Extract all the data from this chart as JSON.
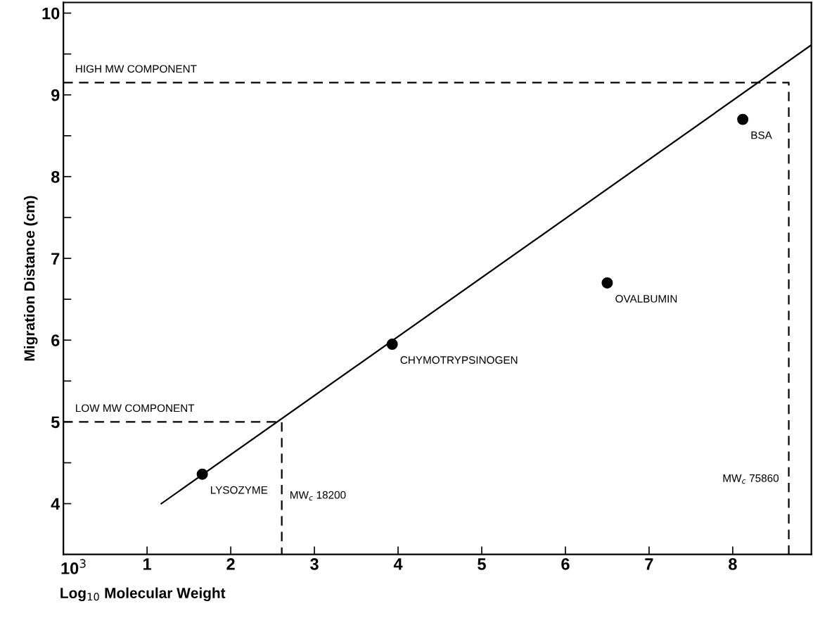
{
  "chart_data": {
    "type": "scatter",
    "xlabel": "Log$_{10}$ Molecular Weight",
    "ylabel": "Migration Distance (cm)",
    "xlim": [
      0,
      8.94
    ],
    "ylim": [
      3.38,
      10.13
    ],
    "xticks": [
      {
        "value": 0,
        "label": null
      },
      1,
      2,
      3,
      4,
      5,
      6,
      7,
      8
    ],
    "yticks": [
      4,
      {
        "value": 4.5,
        "label": null
      },
      5,
      {
        "value": 5.5,
        "label": null
      },
      6,
      {
        "value": 6.5,
        "label": null
      },
      7,
      {
        "value": 7.5,
        "label": null
      },
      8,
      {
        "value": 8.5,
        "label": null
      },
      9,
      {
        "value": 9.5,
        "label": null
      },
      10
    ],
    "grid": false,
    "legend": false,
    "series": [
      {
        "color": "#000000",
        "marker": "circle",
        "x": [
          1.66,
          3.93,
          6.5,
          8.12
        ],
        "values": [
          4.36,
          5.95,
          6.7,
          8.7
        ]
      },
      {
        "type": "line",
        "color": "#000000",
        "line_style": "solid",
        "x": [
          1.17,
          8.94
        ],
        "values": [
          4.0,
          9.61
        ]
      },
      {
        "type": "line",
        "color": "#000000",
        "line_style": "dashed",
        "x": [
          0,
          2.61,
          2.61
        ],
        "values": [
          5.0,
          5.0,
          3.38
        ]
      },
      {
        "type": "line",
        "color": "#000000",
        "line_style": "dashed",
        "x": [
          0,
          8.67,
          8.67
        ],
        "values": [
          9.15,
          9.15,
          3.38
        ]
      }
    ],
    "annotations": [
      "10$^{3}$",
      {
        "text": "HIGH MW COMPONENT",
        "x": 0,
        "y": 9.15
      },
      {
        "text": "LOW MW COMPONENT",
        "x": 0,
        "y": 5.0
      },
      {
        "text": "LYSOZYME",
        "x": 1.66,
        "y": 4.36
      },
      {
        "text": "CHYMOTRYPSINOGEN",
        "x": 3.93,
        "y": 5.95
      },
      {
        "text": "OVALBUMIN",
        "x": 6.5,
        "y": 6.7
      },
      {
        "text": "BSA",
        "x": 8.12,
        "y": 8.7
      },
      {
        "text": "MW$_{c}$ 18200",
        "x": 2.61,
        "y": 4.3
      },
      {
        "text": "MW$_{c}$ 75860",
        "x": 8.67,
        "y": 4.3
      }
    ]
  }
}
